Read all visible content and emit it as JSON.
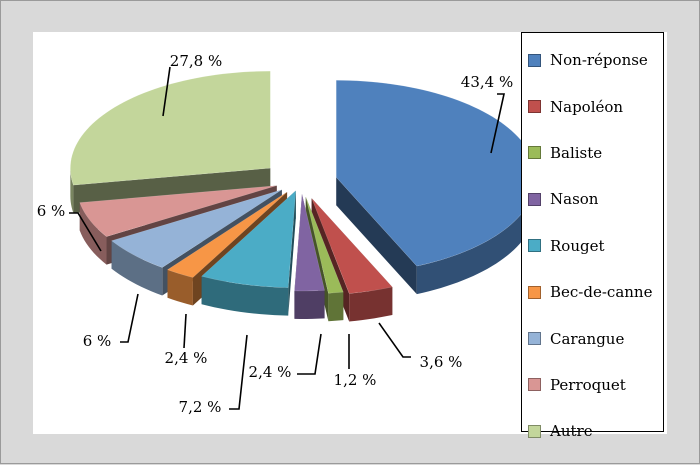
{
  "chart_data": {
    "type": "pie",
    "title": "",
    "style": "3d-exploded",
    "legend_position": "right",
    "categories": [
      "Non-réponse",
      "Napoléon",
      "Baliste",
      "Nason",
      "Rouget",
      "Bec-de-canne",
      "Carangue",
      "Perroquet",
      "Autre"
    ],
    "values": [
      43.4,
      3.6,
      1.2,
      2.4,
      7.2,
      2.4,
      6,
      6,
      27.8
    ],
    "data_labels": [
      "43,4 %",
      "3,6 %",
      "1,2 %",
      "2,4 %",
      "7,2 %",
      "2,4 %",
      "6 %",
      "6 %",
      "27,8 %"
    ],
    "colors": [
      "#4f81bd",
      "#c0504d",
      "#9bbb59",
      "#8064a2",
      "#4bacc6",
      "#f79646",
      "#95b3d7",
      "#d99694",
      "#c3d69b"
    ]
  }
}
